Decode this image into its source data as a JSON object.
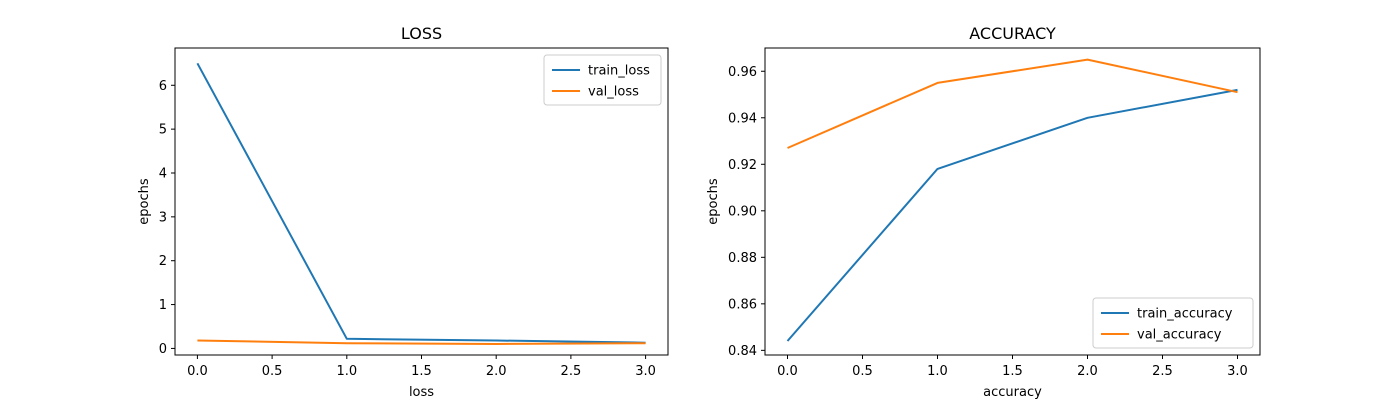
{
  "chart_data": [
    {
      "type": "line",
      "title": "LOSS",
      "xlabel": "loss",
      "ylabel": "epochs",
      "x": [
        0,
        1,
        2,
        3
      ],
      "xlim": [
        -0.15,
        3.15
      ],
      "ylim": [
        -0.15,
        6.85
      ],
      "xticks": [
        0.0,
        0.5,
        1.0,
        1.5,
        2.0,
        2.5,
        3.0
      ],
      "xtick_labels": [
        "0.0",
        "0.5",
        "1.0",
        "1.5",
        "2.0",
        "2.5",
        "3.0"
      ],
      "yticks": [
        0,
        1,
        2,
        3,
        4,
        5,
        6
      ],
      "ytick_labels": [
        "0",
        "1",
        "2",
        "3",
        "4",
        "5",
        "6"
      ],
      "grid": false,
      "legend_position": "top-right",
      "series": [
        {
          "name": "train_loss",
          "color": "#1f77b4",
          "values": [
            6.5,
            0.22,
            0.18,
            0.13
          ]
        },
        {
          "name": "val_loss",
          "color": "#ff7f0e",
          "values": [
            0.18,
            0.12,
            0.1,
            0.12
          ]
        }
      ]
    },
    {
      "type": "line",
      "title": "ACCURACY",
      "xlabel": "accuracy",
      "ylabel": "epochs",
      "x": [
        0,
        1,
        2,
        3
      ],
      "xlim": [
        -0.15,
        3.15
      ],
      "ylim": [
        0.838,
        0.97
      ],
      "xticks": [
        0.0,
        0.5,
        1.0,
        1.5,
        2.0,
        2.5,
        3.0
      ],
      "xtick_labels": [
        "0.0",
        "0.5",
        "1.0",
        "1.5",
        "2.0",
        "2.5",
        "3.0"
      ],
      "yticks": [
        0.84,
        0.86,
        0.88,
        0.9,
        0.92,
        0.94,
        0.96
      ],
      "ytick_labels": [
        "0.84",
        "0.86",
        "0.88",
        "0.90",
        "0.92",
        "0.94",
        "0.96"
      ],
      "grid": false,
      "legend_position": "bottom-right",
      "series": [
        {
          "name": "train_accuracy",
          "color": "#1f77b4",
          "values": [
            0.844,
            0.918,
            0.94,
            0.952
          ]
        },
        {
          "name": "val_accuracy",
          "color": "#ff7f0e",
          "values": [
            0.927,
            0.955,
            0.965,
            0.951
          ]
        }
      ]
    }
  ]
}
